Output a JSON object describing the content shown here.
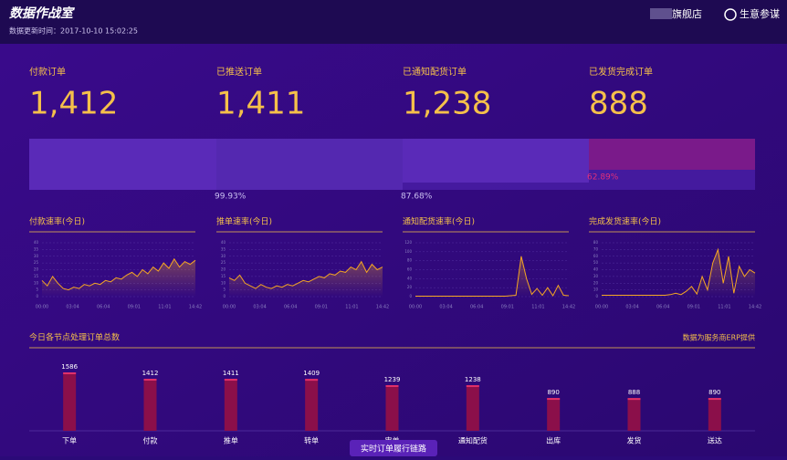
{
  "header": {
    "title": "数据作战室",
    "updated": "数据更新时间：2017-10-10 15:02:25",
    "shop": "旗舰店",
    "brand": "生意参谋"
  },
  "kpis": [
    {
      "label": "付款订单",
      "value": "1,412"
    },
    {
      "label": "已推送订单",
      "value": "1,411"
    },
    {
      "label": "已通知配货订单",
      "value": "1,238"
    },
    {
      "label": "已发货完成订单",
      "value": "888"
    }
  ],
  "funnel_rates": [
    "99.93%",
    "87.68%",
    "62.89%"
  ],
  "chart_data": [
    {
      "type": "line",
      "title": "付款速率(今日)",
      "color": "#f5a623",
      "ylim": [
        0,
        40
      ],
      "yticks": [
        0,
        5,
        10,
        15,
        20,
        25,
        30,
        35,
        40
      ],
      "xticks": [
        "00:00",
        "03:04",
        "06:04",
        "09:01",
        "11:01",
        "14:42"
      ],
      "values": [
        12,
        8,
        15,
        10,
        6,
        5,
        7,
        6,
        9,
        8,
        10,
        9,
        12,
        11,
        14,
        13,
        16,
        18,
        15,
        20,
        17,
        22,
        19,
        25,
        21,
        28,
        22,
        26,
        24,
        27
      ]
    },
    {
      "type": "line",
      "title": "推单速率(今日)",
      "color": "#f5a623",
      "ylim": [
        0,
        40
      ],
      "yticks": [
        0,
        5,
        10,
        15,
        20,
        25,
        30,
        35,
        40
      ],
      "xticks": [
        "00:00",
        "03:04",
        "06:04",
        "09:01",
        "11:01",
        "14:42"
      ],
      "values": [
        14,
        12,
        16,
        10,
        8,
        6,
        9,
        7,
        6,
        8,
        7,
        9,
        8,
        10,
        12,
        11,
        13,
        15,
        14,
        17,
        16,
        19,
        18,
        22,
        20,
        26,
        18,
        24,
        20,
        22
      ]
    },
    {
      "type": "line",
      "title": "通知配货速率(今日)",
      "color": "#f5a623",
      "ylim": [
        0,
        120
      ],
      "yticks": [
        0,
        20,
        40,
        60,
        80,
        100,
        120
      ],
      "xticks": [
        "00:00",
        "03:04",
        "06:04",
        "09:01",
        "11:01",
        "14:42"
      ],
      "values": [
        1,
        1,
        1,
        1,
        1,
        1,
        1,
        1,
        1,
        1,
        1,
        1,
        1,
        1,
        1,
        1,
        1,
        1,
        2,
        3,
        90,
        40,
        5,
        18,
        3,
        20,
        2,
        25,
        3,
        2
      ]
    },
    {
      "type": "line",
      "title": "完成发货速率(今日)",
      "color": "#f5a623",
      "ylim": [
        0,
        80
      ],
      "yticks": [
        0,
        10,
        20,
        30,
        40,
        50,
        60,
        70,
        80
      ],
      "xticks": [
        "00:00",
        "03:04",
        "06:04",
        "09:01",
        "11:01",
        "14:42"
      ],
      "values": [
        2,
        2,
        2,
        2,
        2,
        2,
        2,
        2,
        2,
        2,
        2,
        2,
        2,
        3,
        5,
        3,
        8,
        15,
        4,
        30,
        10,
        50,
        70,
        20,
        60,
        5,
        45,
        30,
        40,
        35
      ]
    },
    {
      "type": "bar",
      "title": "今日各节点处理订单总数",
      "note": "数据为服务商ERP提供",
      "color": "#8b0f4a",
      "categories": [
        "下单",
        "付款",
        "推单",
        "转单",
        "审单",
        "通知配货",
        "出库",
        "发货",
        "送达"
      ],
      "values": [
        1586,
        1412,
        1411,
        1409,
        1239,
        1238,
        890,
        888,
        890
      ]
    }
  ],
  "tab": "实时订单履行链路"
}
